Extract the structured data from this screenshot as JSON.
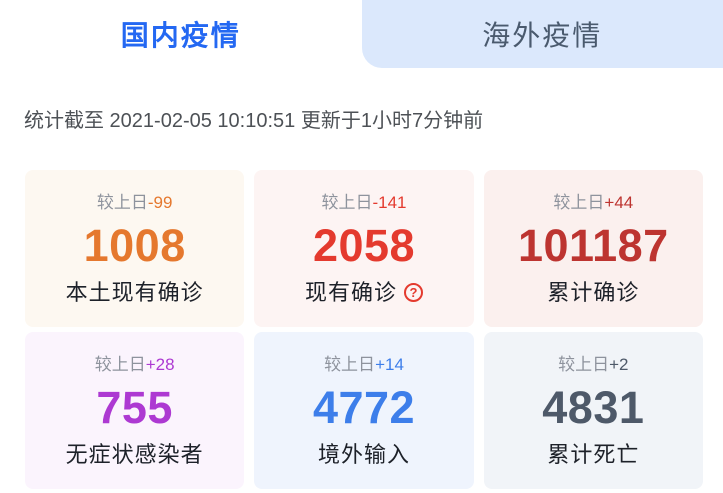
{
  "tabs": [
    {
      "id": "domestic",
      "label": "国内疫情",
      "active": true
    },
    {
      "id": "overseas",
      "label": "海外疫情",
      "active": false
    }
  ],
  "status_bar": {
    "text": "统计截至 2021-02-05 10:10:51 更新于1小时7分钟前"
  },
  "theme": {
    "active_tab_color": "#2468f2",
    "inactive_tab_bg": "#dbe8fc",
    "inactive_tab_color": "#4a5a6e",
    "status_text_color": "#4d5156",
    "delta_label_color": "#8e939d",
    "card_label_color": "#1d2129"
  },
  "stats": {
    "delta_prefix": "较上日",
    "cards": [
      {
        "name": "local-existing-confirmed",
        "delta": "-99",
        "value": "1008",
        "label": "本土现有确诊",
        "accent": "#e5782e",
        "bg": "#fdf8f1",
        "help_icon": false
      },
      {
        "name": "existing-confirmed",
        "delta": "-141",
        "value": "2058",
        "label": "现有确诊",
        "accent": "#e43a2e",
        "bg": "#fdf4f3",
        "help_icon": true,
        "help_glyph": "?"
      },
      {
        "name": "cumulative-confirmed",
        "delta": "+44",
        "value": "101187",
        "label": "累计确诊",
        "accent": "#bd3430",
        "bg": "#fbf0ee",
        "help_icon": false
      },
      {
        "name": "asymptomatic-infections",
        "delta": "+28",
        "value": "755",
        "label": "无症状感染者",
        "accent": "#ad39d2",
        "bg": "#fbf4fd",
        "help_icon": false
      },
      {
        "name": "imported-cases",
        "delta": "+14",
        "value": "4772",
        "label": "境外输入",
        "accent": "#3d7eea",
        "bg": "#eff4fd",
        "help_icon": false
      },
      {
        "name": "cumulative-deaths",
        "delta": "+2",
        "value": "4831",
        "label": "累计死亡",
        "accent": "#4e5969",
        "bg": "#f1f4f8",
        "help_icon": false
      }
    ]
  }
}
